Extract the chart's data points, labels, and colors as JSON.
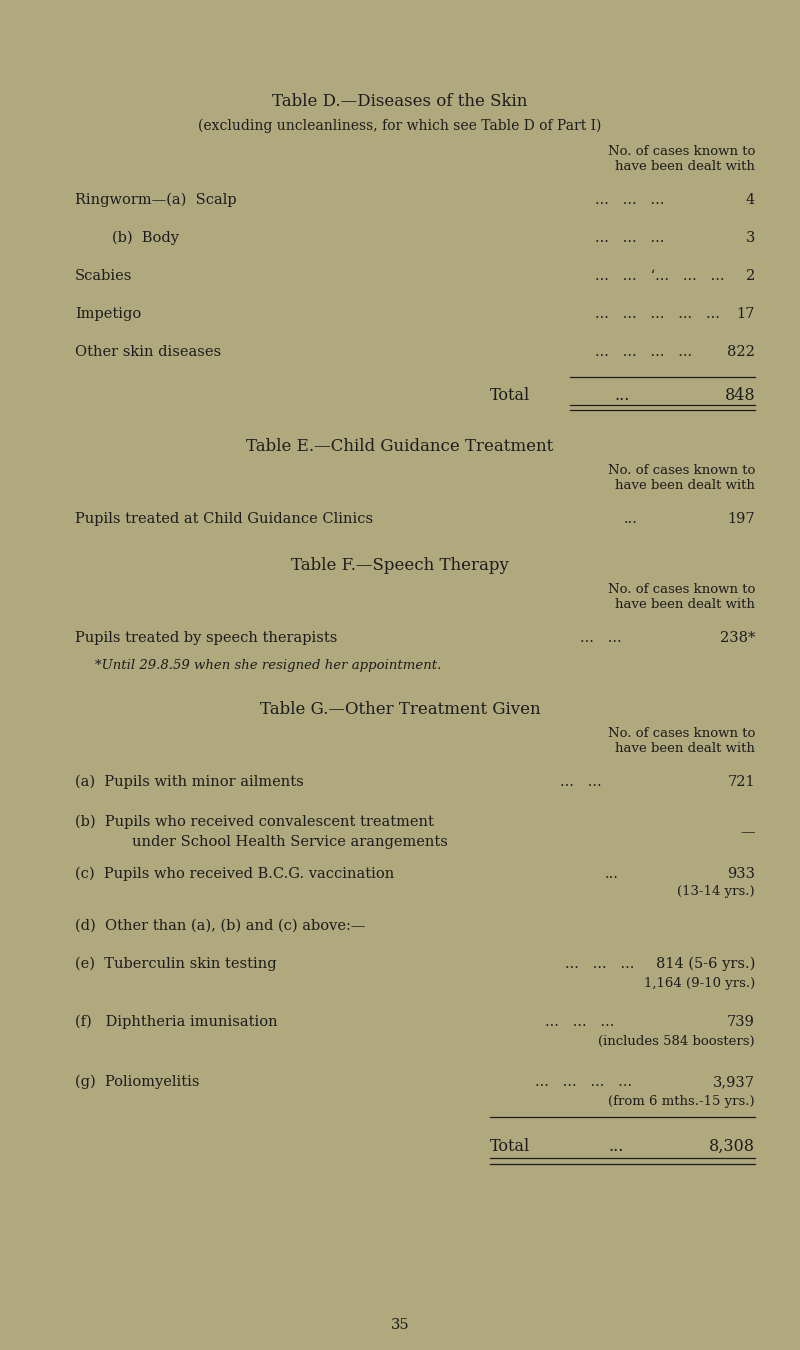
{
  "bg_color": "#b0a97e",
  "text_color": "#1c1c1c",
  "page_number": "35",
  "tableD_title": "Table D.—Diseases of the Skin",
  "tableD_subtitle": "(excluding uncleanliness, for which see Table D of Part I)",
  "col_header": "No. of cases known to\nhave been dealt with",
  "tableD_rows": [
    {
      "label": "Ringworm—(a)  Scalp",
      "dots": "...   ...   ...",
      "value": "4"
    },
    {
      "label": "        (b)  Body",
      "dots": "...   ...   ...",
      "value": "3"
    },
    {
      "label": "Scabies",
      "dots": "...   ...   ‘...   ...   ...",
      "value": "2"
    },
    {
      "label": "Impetigo",
      "dots": "...   ...   ...   ...   ...",
      "value": "17"
    },
    {
      "label": "Other skin diseases",
      "dots": "...   ...   ...   ...",
      "value": "822"
    }
  ],
  "tableD_total_label": "Total",
  "tableD_total_dots": "...",
  "tableD_total_value": "848",
  "tableE_title": "Table E.—Child Guidance Treatment",
  "tableE_rows": [
    {
      "label": "Pupils treated at Child Guidance Clinics",
      "dots": "...",
      "value": "197"
    }
  ],
  "tableF_title": "Table F.—Speech Therapy",
  "tableF_rows": [
    {
      "label": "Pupils treated by speech therapists",
      "dots": "...   ...",
      "value": "238*"
    }
  ],
  "tableF_footnote": "*Until 29.8.59 when she resigned her appointment.",
  "tableG_title": "Table G.—Other Treatment Given",
  "tableG_rows": [
    {
      "label": "(a)  Pupils with minor ailments",
      "dots": "...   ...",
      "value": "721",
      "value2": ""
    },
    {
      "label": "(b)  Pupils who received convalescent treatment",
      "label2": "        under School Health Service arangements",
      "dots": "",
      "value": "—",
      "value2": ""
    },
    {
      "label": "(c)  Pupils who received B.C.G. vaccination",
      "dots": "...",
      "value": "933",
      "value2": "(13-14 yrs.)"
    },
    {
      "label": "(d)  Other than (a), (b) and (c) above:—",
      "dots": "",
      "value": "",
      "value2": ""
    },
    {
      "label": "(e)  Tuberculin skin testing",
      "dots": "...   ...   ...",
      "value": "814 (5-6 yrs.)",
      "value2": "1,164 (9-10 yrs.)"
    },
    {
      "label": "(f)   Diphtheria imunisation",
      "dots": "...   ...   ...",
      "value": "739",
      "value2": "(includes 584 boosters)"
    },
    {
      "label": "(g)  Poliomyelitis",
      "dots": "...   ...   ...   ...",
      "value": "3,937",
      "value2": "(from 6 mths.-15 yrs.)"
    }
  ],
  "tableG_total_label": "Total",
  "tableG_total_dots": "...",
  "tableG_total_value": "8,308"
}
